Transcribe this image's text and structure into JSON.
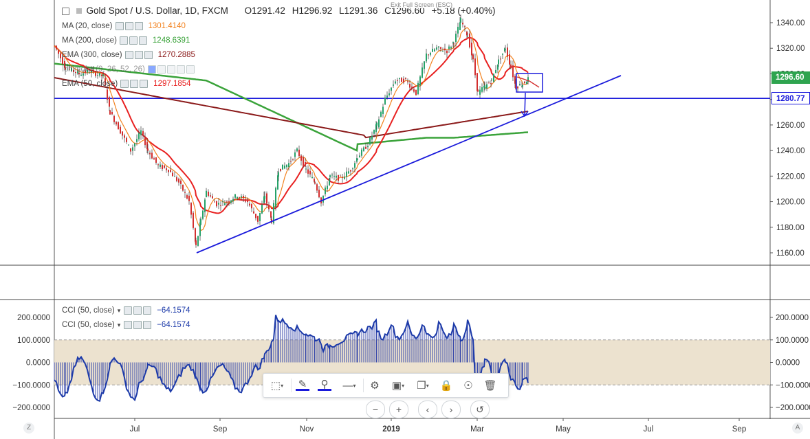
{
  "header": {
    "symbol": "Gold Spot / U.S. Dollar, 1D, FXCM",
    "open": "O1291.42",
    "high": "H1296.92",
    "low": "L1291.36",
    "close": "C1296.60",
    "change": "+5.18 (+0.40%)"
  },
  "exit_fullscreen": "Exit Full Screen (ESC)",
  "indicators": [
    {
      "name": "MA (20, close)",
      "value": "1301.4140",
      "color": "#f2811d"
    },
    {
      "name": "MA (200, close)",
      "value": "1248.6391",
      "color": "#3aa33a"
    },
    {
      "name": "EMA (300, close)",
      "value": "1270.2885",
      "color": "#8b1a1a"
    },
    {
      "name": "Ichimoku (9, 26, 52, 26)",
      "value": "",
      "color": "#2962ff"
    },
    {
      "name": "EMA (50, close)",
      "value": "1297.1854",
      "color": "#e82020"
    }
  ],
  "price_axis": {
    "ticks": [
      "1340.00",
      "1320.00",
      "1300.00",
      "1280.00",
      "1260.00",
      "1240.00",
      "1220.00",
      "1200.00",
      "1180.00",
      "1160.00"
    ],
    "current_price": "1296.60",
    "current_price_color": "#2ea44f",
    "hline_price": "1280.77",
    "hline_color": "#1a1adb"
  },
  "cci_panel": {
    "legend": [
      {
        "name": "CCI (50, close)",
        "value": "−64.1574"
      },
      {
        "name": "CCI (50, close)",
        "value": "−64.1574"
      }
    ],
    "ticks": [
      "200.0000",
      "100.0000",
      "0.0000",
      "−100.0000",
      "−200.0000"
    ],
    "band_color": "#ece2cf",
    "line_color": "#1c3aa9"
  },
  "time_axis": [
    "Jul",
    "Sep",
    "Nov",
    "2019",
    "Mar",
    "May",
    "Jul",
    "Sep"
  ],
  "toolbar": {
    "items": [
      "rectangle-select-icon",
      "pencil-icon",
      "fill-bucket-icon",
      "line-style-icon",
      "gear-icon",
      "layers-icon",
      "copy-icon",
      "lock-icon",
      "eye-icon",
      "trash-icon"
    ]
  },
  "nav": [
    "−",
    "+",
    "‹",
    "›",
    "↺"
  ],
  "corners": {
    "left": "Z",
    "right": "A"
  }
}
